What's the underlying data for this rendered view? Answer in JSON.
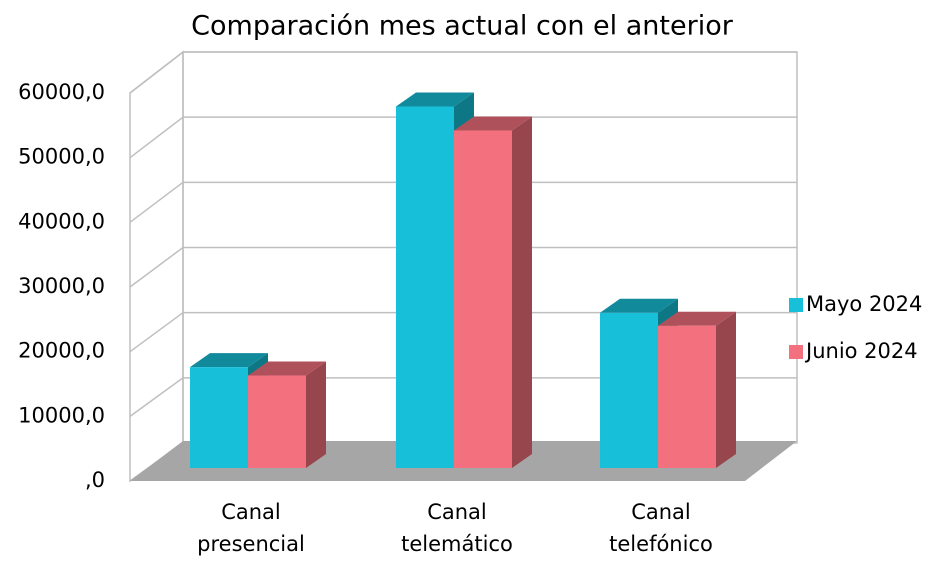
{
  "chart_data": {
    "type": "bar3d",
    "title": "Comparación mes actual con el anterior",
    "categories": [
      "Canal presencial",
      "Canal telemático",
      "Canal telefónico"
    ],
    "series": [
      {
        "name": "Mayo 2024",
        "color": "#17c0d8",
        "values": [
          15600,
          55900,
          24000
        ]
      },
      {
        "name": "Junio 2024",
        "color": "#f3717e",
        "values": [
          14300,
          52200,
          22000
        ]
      }
    ],
    "ylim": [
      0,
      60000
    ],
    "yticks": [
      {
        "value": 0,
        "label": ",0"
      },
      {
        "value": 10000,
        "label": "10000,0"
      },
      {
        "value": 20000,
        "label": "20000,0"
      },
      {
        "value": 30000,
        "label": "30000,0"
      },
      {
        "value": 40000,
        "label": "40000,0"
      },
      {
        "value": 50000,
        "label": "50000,0"
      },
      {
        "value": 60000,
        "label": "60000,0"
      }
    ],
    "grid": true,
    "legend": "right"
  }
}
